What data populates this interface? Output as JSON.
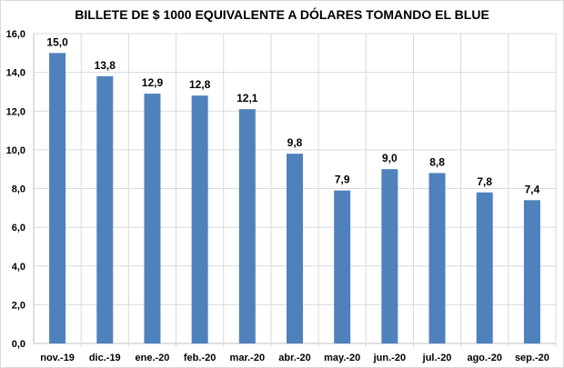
{
  "chart_data": {
    "type": "bar",
    "title": "BILLETE DE $ 1000 EQUIVALENTE  A DÓLARES TOMANDO  EL BLUE",
    "xlabel": "",
    "ylabel": "",
    "categories": [
      "nov.-19",
      "dic.-19",
      "ene.-20",
      "feb.-20",
      "mar.-20",
      "abr.-20",
      "may.-20",
      "jun.-20",
      "jul.-20",
      "ago.-20",
      "sep.-20"
    ],
    "values": [
      15.0,
      13.8,
      12.9,
      12.8,
      12.1,
      9.8,
      7.9,
      9.0,
      8.8,
      7.8,
      7.4
    ],
    "data_labels": [
      "15,0",
      "13,8",
      "12,9",
      "12,8",
      "12,1",
      "9,8",
      "7,9",
      "9,0",
      "8,8",
      "7,8",
      "7,4"
    ],
    "ylim": [
      0,
      16
    ],
    "yticks": [
      0,
      2,
      4,
      6,
      8,
      10,
      12,
      14,
      16
    ],
    "ytick_labels": [
      "0,0",
      "2,0",
      "4,0",
      "6,0",
      "8,0",
      "10,0",
      "12,0",
      "14,0",
      "16,0"
    ],
    "grid": true,
    "legend": "none",
    "bar_color": "#4f81bd"
  }
}
